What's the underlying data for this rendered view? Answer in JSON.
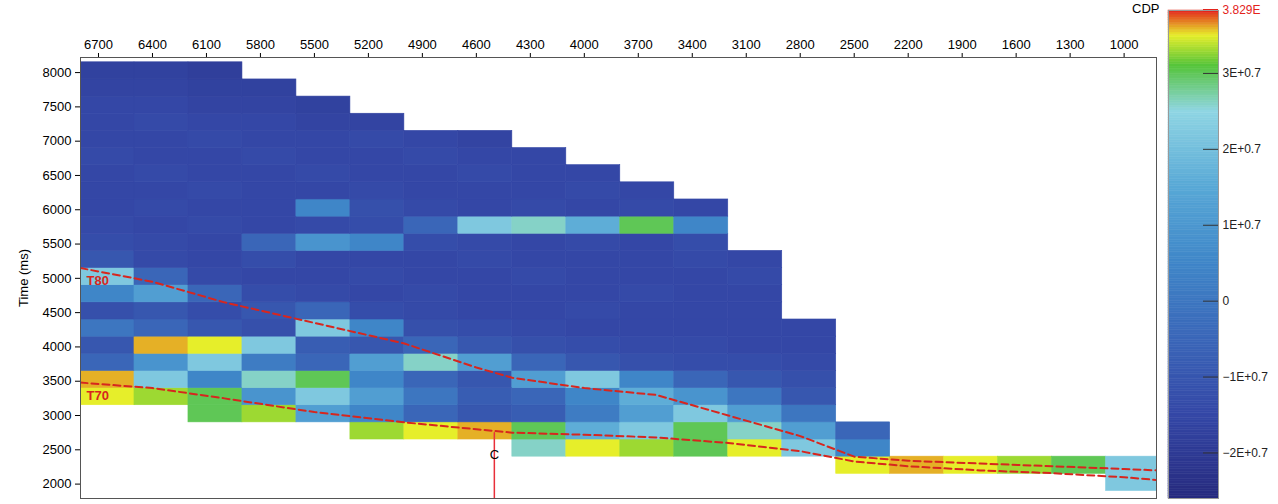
{
  "chart_data": {
    "type": "heatmap",
    "x_label": "CDP",
    "y_label": "Time (ms)",
    "xlim": [
      6800,
      820
    ],
    "xticks": [
      6700,
      6400,
      6100,
      5800,
      5500,
      5200,
      4900,
      4600,
      4300,
      4000,
      3700,
      3400,
      3100,
      2800,
      2500,
      2200,
      1900,
      1600,
      1300,
      1000
    ],
    "ylim": [
      1790,
      8220
    ],
    "yticks": [
      2000,
      2500,
      3000,
      3500,
      4000,
      4500,
      5000,
      5500,
      6000,
      6500,
      7000,
      7500,
      8000
    ],
    "grid": false,
    "x_edges": [
      6800,
      6500,
      6200,
      5900,
      5600,
      5300,
      5000,
      4700,
      4400,
      4100,
      3800,
      3500,
      3200,
      2900,
      2600,
      2300,
      2000,
      1700,
      1400,
      1100,
      800
    ],
    "y_edges": [
      1900,
      2150,
      2400,
      2650,
      2900,
      3150,
      3400,
      3650,
      3900,
      4150,
      4400,
      4650,
      4900,
      5150,
      5400,
      5650,
      5900,
      6150,
      6400,
      6650,
      6900,
      7150,
      7400,
      7650,
      7900,
      8150
    ],
    "z": [
      [
        null,
        null,
        null,
        null,
        null,
        null,
        null,
        null,
        null,
        null,
        null,
        null,
        null,
        null,
        null,
        null,
        null,
        null,
        null,
        2.2
      ],
      [
        null,
        null,
        null,
        null,
        null,
        null,
        null,
        null,
        null,
        null,
        null,
        null,
        null,
        null,
        3.5,
        3.6,
        3.5,
        3.3,
        3.0,
        2.2
      ],
      [
        null,
        null,
        null,
        null,
        null,
        null,
        null,
        null,
        2.6,
        3.5,
        3.3,
        3.0,
        3.5,
        2.2,
        0.5,
        null,
        null,
        null,
        null,
        null
      ],
      [
        null,
        null,
        null,
        null,
        null,
        3.3,
        3.5,
        3.6,
        3.0,
        1.6,
        2.2,
        3.0,
        2.6,
        1.2,
        -0.5,
        null,
        null,
        null,
        null,
        null
      ],
      [
        null,
        null,
        3.0,
        3.3,
        1.2,
        0.5,
        -0.5,
        -1.0,
        -0.8,
        0.2,
        1.2,
        2.2,
        1.2,
        0.0,
        null,
        null,
        null,
        null,
        null,
        null
      ],
      [
        3.5,
        3.3,
        3.0,
        0.9,
        2.2,
        1.2,
        0.0,
        -0.8,
        -0.5,
        0.5,
        1.6,
        0.9,
        0.0,
        -1.0,
        null,
        null,
        null,
        null,
        null,
        null
      ],
      [
        3.6,
        2.2,
        0.5,
        2.6,
        3.0,
        0.5,
        -0.5,
        -1.0,
        1.2,
        2.2,
        0.5,
        -0.5,
        -1.0,
        -1.2,
        null,
        null,
        null,
        null,
        null,
        null
      ],
      [
        -0.5,
        0.9,
        2.2,
        0.2,
        -0.5,
        1.2,
        2.6,
        1.2,
        -0.5,
        -1.0,
        -1.2,
        -1.3,
        -1.3,
        -1.4,
        null,
        null,
        null,
        null,
        null,
        null
      ],
      [
        -1.0,
        3.6,
        3.5,
        2.2,
        -0.8,
        -1.0,
        -0.5,
        -1.0,
        -1.2,
        -1.3,
        -1.4,
        -1.4,
        -1.5,
        -1.5,
        null,
        null,
        null,
        null,
        null,
        null
      ],
      [
        0.0,
        -0.5,
        -1.0,
        -1.2,
        2.2,
        0.5,
        -1.2,
        -1.3,
        -1.4,
        -1.5,
        -1.5,
        -1.5,
        -1.5,
        -1.5,
        null,
        null,
        null,
        null,
        null,
        null
      ],
      [
        -1.2,
        -1.0,
        -1.3,
        -1.0,
        -0.5,
        -1.3,
        -1.4,
        -1.5,
        -1.5,
        -1.4,
        -1.5,
        -1.5,
        -1.5,
        null,
        null,
        null,
        null,
        null,
        null,
        null
      ],
      [
        0.5,
        1.2,
        -0.5,
        -1.3,
        -1.4,
        -1.5,
        -1.4,
        -1.5,
        -1.5,
        -1.5,
        -1.4,
        -1.5,
        -1.5,
        null,
        null,
        null,
        null,
        null,
        null,
        null
      ],
      [
        2.2,
        -0.5,
        -1.4,
        -1.5,
        -1.5,
        -1.4,
        -1.5,
        -1.5,
        -1.4,
        -1.5,
        -1.5,
        -1.5,
        -1.4,
        null,
        null,
        null,
        null,
        null,
        null,
        null
      ],
      [
        -1.0,
        -1.4,
        -1.5,
        -1.3,
        -1.5,
        -1.5,
        -1.5,
        -1.4,
        -1.5,
        -1.5,
        -1.5,
        -1.4,
        -1.5,
        null,
        null,
        null,
        null,
        null,
        null,
        null
      ],
      [
        -1.3,
        -1.4,
        -1.5,
        -0.5,
        0.9,
        0.5,
        -1.3,
        -1.4,
        -1.5,
        -1.4,
        -1.5,
        -1.3,
        null,
        null,
        null,
        null,
        null,
        null,
        null,
        null
      ],
      [
        -1.4,
        -1.5,
        -1.4,
        -1.5,
        -1.4,
        -1.3,
        -0.5,
        2.2,
        2.6,
        1.6,
        3.0,
        0.5,
        null,
        null,
        null,
        null,
        null,
        null,
        null,
        null
      ],
      [
        -1.5,
        -1.4,
        -1.5,
        -1.5,
        0.5,
        -1.2,
        -1.4,
        -1.5,
        -1.4,
        -1.5,
        -1.4,
        -1.5,
        null,
        null,
        null,
        null,
        null,
        null,
        null,
        null
      ],
      [
        -1.5,
        -1.5,
        -1.4,
        -1.5,
        -1.5,
        -1.4,
        -1.5,
        -1.5,
        -1.5,
        -1.4,
        -1.5,
        null,
        null,
        null,
        null,
        null,
        null,
        null,
        null,
        null
      ],
      [
        -1.5,
        -1.4,
        -1.5,
        -1.5,
        -1.4,
        -1.5,
        -1.5,
        -1.4,
        -1.5,
        -1.5,
        null,
        null,
        null,
        null,
        null,
        null,
        null,
        null,
        null,
        null
      ],
      [
        -1.4,
        -1.5,
        -1.5,
        -1.4,
        -1.5,
        -1.5,
        -1.4,
        -1.5,
        -1.5,
        null,
        null,
        null,
        null,
        null,
        null,
        null,
        null,
        null,
        null,
        null
      ],
      [
        -1.5,
        -1.5,
        -1.4,
        -1.5,
        -1.5,
        -1.4,
        -1.5,
        -1.6,
        null,
        null,
        null,
        null,
        null,
        null,
        null,
        null,
        null,
        null,
        null,
        null
      ],
      [
        -1.5,
        -1.4,
        -1.5,
        -1.5,
        -1.6,
        -1.6,
        null,
        null,
        null,
        null,
        null,
        null,
        null,
        null,
        null,
        null,
        null,
        null,
        null,
        null
      ],
      [
        -1.5,
        -1.5,
        -1.6,
        -1.6,
        -1.7,
        null,
        null,
        null,
        null,
        null,
        null,
        null,
        null,
        null,
        null,
        null,
        null,
        null,
        null,
        null
      ],
      [
        -1.6,
        -1.6,
        -1.7,
        -1.7,
        null,
        null,
        null,
        null,
        null,
        null,
        null,
        null,
        null,
        null,
        null,
        null,
        null,
        null,
        null,
        null
      ],
      [
        -1.7,
        -1.7,
        -1.8,
        null,
        null,
        null,
        null,
        null,
        null,
        null,
        null,
        null,
        null,
        null,
        null,
        null,
        null,
        null,
        null,
        null
      ]
    ],
    "colorbar": {
      "range": [
        -2.6,
        3.829
      ],
      "ticks": [
        {
          "value": -2,
          "label": "−2E+0.7"
        },
        {
          "value": -1,
          "label": "−1E+0.7"
        },
        0,
        {
          "value": 1,
          "label": "1E+0.7"
        },
        {
          "value": 2,
          "label": "2E+0.7"
        },
        {
          "value": 3,
          "label": "3E+0.7"
        },
        {
          "value": 3.829,
          "label": "3.829E"
        }
      ],
      "stops": [
        -2.6,
        -1.5,
        -0.5,
        0.5,
        1.5,
        2.5,
        3.1,
        3.5,
        3.829
      ],
      "colors": [
        "#262a7e",
        "#3447a6",
        "#3a66b8",
        "#3f86c8",
        "#58a8d6",
        "#8fd5e3",
        "#55c43a",
        "#e6ee2a",
        "#e3231c"
      ]
    },
    "series": [
      {
        "name": "T70",
        "type": "line",
        "color": "#d7261e",
        "line_style": "dashed",
        "x": [
          6800,
          6400,
          6000,
          5500,
          5000,
          4600,
          4400,
          4000,
          3600,
          3200,
          2800,
          2500,
          2200,
          1800,
          1400,
          1000,
          820
        ],
        "y": [
          3480,
          3400,
          3250,
          3050,
          2900,
          2800,
          2750,
          2720,
          2680,
          2600,
          2480,
          2330,
          2260,
          2200,
          2160,
          2100,
          2060
        ]
      },
      {
        "name": "T80",
        "type": "line",
        "color": "#d7261e",
        "line_style": "dashed",
        "x": [
          6800,
          6400,
          6000,
          5500,
          5000,
          4600,
          4400,
          4000,
          3600,
          3200,
          2800,
          2500,
          2200,
          1800,
          1400,
          1000,
          820
        ],
        "y": [
          5150,
          4950,
          4650,
          4350,
          4050,
          3700,
          3550,
          3400,
          3300,
          3000,
          2700,
          2400,
          2340,
          2300,
          2260,
          2220,
          2200
        ]
      }
    ],
    "wells": [
      {
        "name": "C",
        "x": 4500,
        "y": [
          1790,
          2750
        ],
        "color": "#e8303a"
      }
    ]
  }
}
